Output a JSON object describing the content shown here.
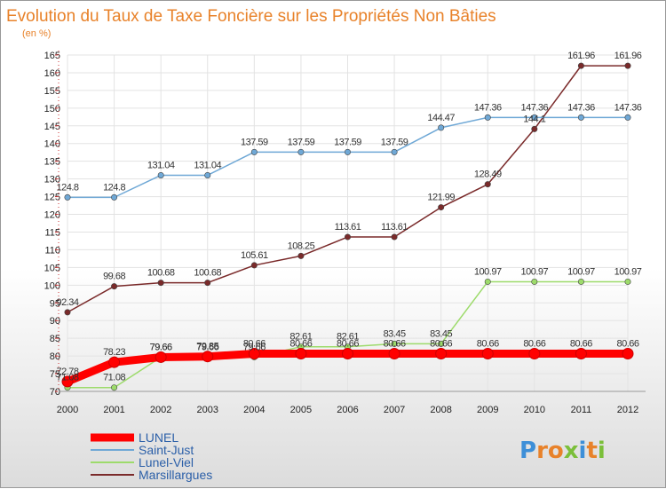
{
  "chart_data": {
    "type": "line",
    "title": "Evolution du Taux de Taxe Foncière sur les Propriétés Non Bâties",
    "ylabel": "(en %)",
    "xlabel": "",
    "x": [
      "2000",
      "2001",
      "2002",
      "2003",
      "2004",
      "2005",
      "2006",
      "2007",
      "2008",
      "2009",
      "2010",
      "2011",
      "2012"
    ],
    "ylim": [
      70,
      165
    ],
    "ytick_step": 5,
    "grid": true,
    "legend_position": "bottom-left",
    "series": [
      {
        "name": "LUNEL",
        "color": "#ff0000",
        "values": [
          72.78,
          78.23,
          79.66,
          79.85,
          80.66,
          80.66,
          80.66,
          80.66,
          80.66,
          80.66,
          80.66,
          80.66,
          80.66
        ],
        "labels": [
          "72.78",
          "78.23",
          "79.66",
          "79.85",
          "80.66",
          "80.66",
          "80.66",
          "80.66",
          "80.66",
          "80.66",
          "80.66",
          "80.66",
          "80.66"
        ]
      },
      {
        "name": "Saint-Just",
        "color": "#6fa8d6",
        "values": [
          124.8,
          124.8,
          131.04,
          131.04,
          137.59,
          137.59,
          137.59,
          137.59,
          144.47,
          147.36,
          147.36,
          147.36,
          147.36
        ],
        "labels": [
          "124.8",
          "124.8",
          "131.04",
          "131.04",
          "137.59",
          "137.59",
          "137.59",
          "137.59",
          "144.47",
          "147.36",
          "147.36",
          "147.36",
          "147.36"
        ]
      },
      {
        "name": "Lunel-Viel",
        "color": "#9ddb6b",
        "values": [
          71.08,
          71.08,
          79.66,
          79.66,
          79.66,
          82.61,
          82.61,
          83.45,
          83.45,
          100.97,
          100.97,
          100.97,
          100.97
        ],
        "labels": [
          "71.08",
          "71.08",
          "79.66",
          "79.66",
          "79.66",
          "82.61",
          "82.61",
          "83.45",
          "83.45",
          "100.97",
          "100.97",
          "100.97",
          "100.97"
        ]
      },
      {
        "name": "Marsillargues",
        "color": "#7a2a2a",
        "values": [
          92.34,
          99.68,
          100.68,
          100.68,
          105.61,
          108.25,
          113.61,
          113.61,
          121.99,
          128.49,
          144.1,
          161.96,
          161.96
        ],
        "labels": [
          "92.34",
          "99.68",
          "100.68",
          "100.68",
          "105.61",
          "108.25",
          "113.61",
          "113.61",
          "121.99",
          "128.49",
          "144.1",
          "161.96",
          "161.96"
        ]
      }
    ]
  },
  "logo": {
    "text": "Proxiti",
    "colors": [
      "#3d8fd8",
      "#e8822a",
      "#e8822a",
      "#7bbf3a",
      "#3d8fd8",
      "#e8822a",
      "#7bbf3a"
    ]
  }
}
